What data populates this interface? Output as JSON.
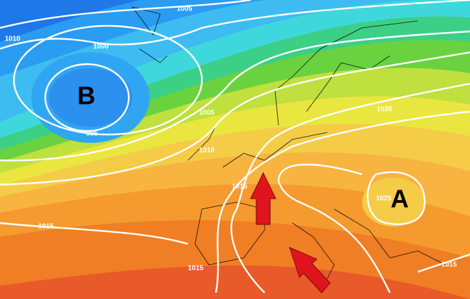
{
  "pressure_centers": [
    {
      "label": "B"
    },
    {
      "label": "A"
    }
  ],
  "isobar_labels": [
    1005,
    1010,
    1000,
    995,
    1005,
    1010,
    1015,
    1020,
    1025,
    1015,
    1015,
    1015
  ]
}
